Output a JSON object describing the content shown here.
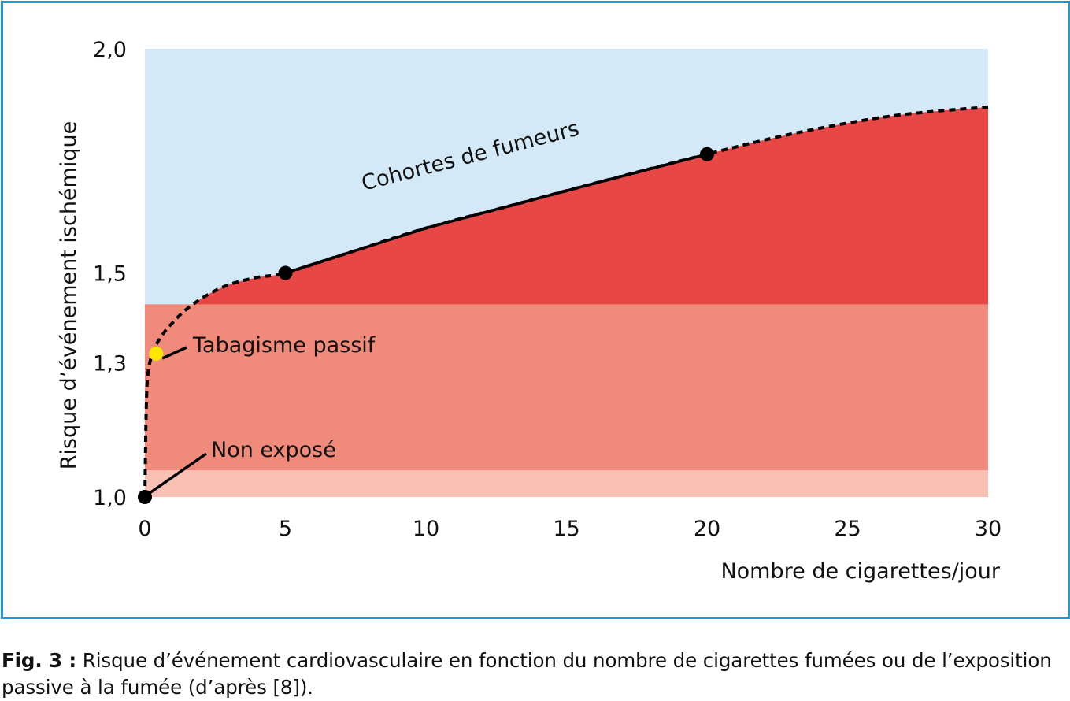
{
  "colors": {
    "frame": "#1a9ad6",
    "background_band": "#d3e9f7",
    "smoker_area": "#e84845",
    "passive_band": "#f08a7b",
    "unexposed_band": "#f9c0b4",
    "point": "#000000",
    "passive_point": "#ffe600"
  },
  "chart_data": {
    "type": "area",
    "xlabel": "Nombre de cigarettes/jour",
    "ylabel": "Risque d’événement ischémique",
    "xlim": [
      0,
      30
    ],
    "ylim": [
      1.0,
      2.0
    ],
    "x_ticks": [
      {
        "value": 0,
        "label": "0"
      },
      {
        "value": 5,
        "label": "5"
      },
      {
        "value": 10,
        "label": "10"
      },
      {
        "value": 15,
        "label": "15"
      },
      {
        "value": 20,
        "label": "20"
      },
      {
        "value": 25,
        "label": "25"
      },
      {
        "value": 30,
        "label": "30"
      }
    ],
    "y_ticks": [
      {
        "value": 1.0,
        "label": "1,0"
      },
      {
        "value": 1.3,
        "label": "1,3"
      },
      {
        "value": 1.5,
        "label": "1,5"
      },
      {
        "value": 2.0,
        "label": "2,0"
      }
    ],
    "grid": false,
    "curve": {
      "x": [
        0,
        0.05,
        0.12,
        0.3,
        0.6,
        1.0,
        1.5,
        2.2,
        3.0,
        4.0,
        5.0,
        7.0,
        10.0,
        13.0,
        16.0,
        20.0,
        23.0,
        26.0,
        28.0,
        30.0
      ],
      "y": [
        1.0,
        1.2,
        1.28,
        1.325,
        1.36,
        1.39,
        1.42,
        1.45,
        1.474,
        1.49,
        1.5,
        1.54,
        1.6,
        1.65,
        1.7,
        1.765,
        1.81,
        1.845,
        1.86,
        1.87
      ]
    },
    "bands": [
      {
        "name": "unexposed",
        "y": [
          1.0,
          1.06
        ]
      },
      {
        "name": "passive",
        "y": [
          1.06,
          1.43
        ]
      }
    ],
    "points": [
      {
        "x": 0,
        "y": 1.0,
        "color": "#000000"
      },
      {
        "x": 0.4,
        "y": 1.32,
        "color": "#ffe600"
      },
      {
        "x": 5,
        "y": 1.5,
        "color": "#000000"
      },
      {
        "x": 20,
        "y": 1.765,
        "color": "#000000"
      }
    ],
    "annotations": [
      {
        "text": "Cohortes de fumeurs"
      },
      {
        "text": "Tabagisme passif"
      },
      {
        "text": "Non exposé"
      }
    ]
  },
  "caption": {
    "fig_label": "Fig. 3 :",
    "text": " Risque d’événement cardiovasculaire en fonction du nombre de cigarettes fumées ou de l’exposition passive à la fumée (d’après [8])."
  }
}
